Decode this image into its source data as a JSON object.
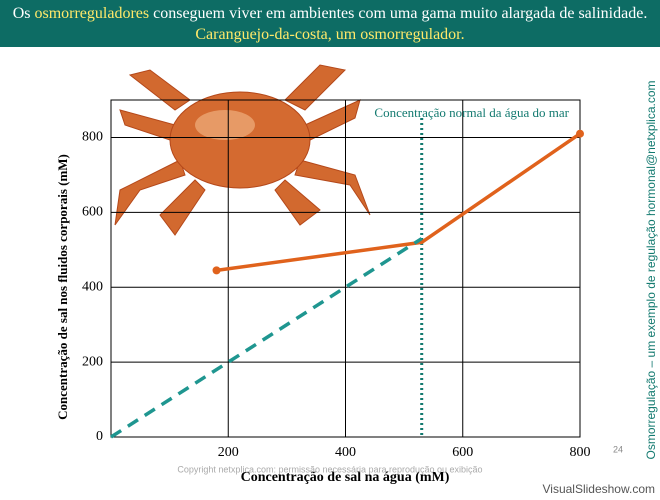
{
  "header": {
    "lead": "Os",
    "highlight": "osmorreguladores",
    "text": "conseguem viver em ambientes com uma gama muito alargada de salinidade.",
    "caption": "Caranguejo-da-costa, um osmorregulador."
  },
  "side_note": "Osmorregulação – um exemplo de regulação hormonal@netxplica.com",
  "footer": {
    "copyright": "Copyright netxplica.com: permissão necessária para reprodução ou exibição",
    "page": "24",
    "watermark": "VisualSlideshow.com"
  },
  "chart_data": {
    "type": "line",
    "x_label": "Concentração de sal na água (mM)",
    "y_label": "Concentração de sal nos fluidos corporais (mM)",
    "xlim": [
      0,
      800
    ],
    "ylim": [
      0,
      900
    ],
    "xticks": [
      200,
      400,
      600,
      800
    ],
    "yticks": [
      0,
      200,
      400,
      600,
      800
    ],
    "grid": true,
    "series": [
      {
        "color": "#e0621c",
        "style": "solid",
        "x": [
          180,
          530,
          800
        ],
        "values": [
          445,
          520,
          810
        ]
      },
      {
        "color": "#1f9690",
        "style": "dashed",
        "x": [
          0,
          530
        ],
        "values": [
          0,
          530
        ]
      }
    ],
    "annotation": {
      "x": 530,
      "label": "Concentração normal da água do mar",
      "color": "#137a70"
    }
  }
}
